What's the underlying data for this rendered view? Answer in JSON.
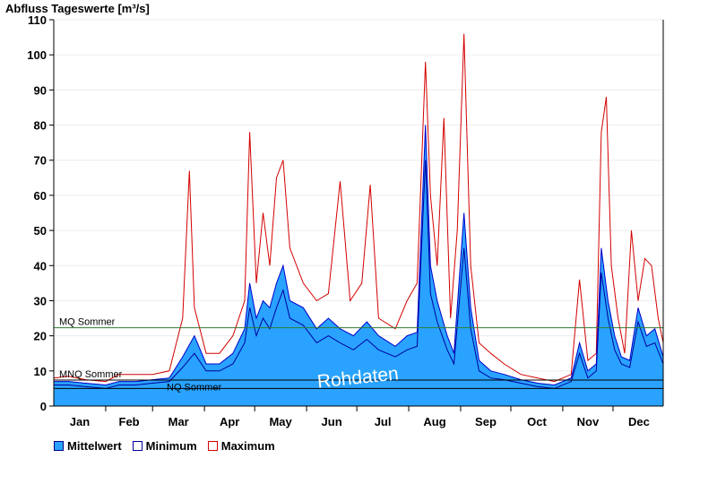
{
  "chart_data": {
    "type": "area",
    "ylabel": "Abfluss Tageswerte [m³/s]",
    "ylim": [
      0,
      110
    ],
    "yticks": [
      0,
      10,
      20,
      30,
      40,
      50,
      60,
      70,
      80,
      90,
      100,
      110
    ],
    "categories": [
      "Jan",
      "Feb",
      "Mar",
      "Apr",
      "May",
      "Jun",
      "Jul",
      "Aug",
      "Sep",
      "Oct",
      "Nov",
      "Dec"
    ],
    "x_unit": "day of year",
    "xlim": [
      1,
      365
    ],
    "watermark": "Rohdaten",
    "reference_lines": [
      {
        "label": "MQ Sommer",
        "value": 22.3,
        "color": "#2e7d32"
      },
      {
        "label": "MNQ Sommer",
        "value": 7.4,
        "color": "#000000"
      },
      {
        "label": "NQ Sommer",
        "value": 5.0,
        "color": "#000000"
      }
    ],
    "series": [
      {
        "name": "Mittelwert",
        "color": "#29a3ff",
        "style": "area",
        "points": [
          [
            1,
            7
          ],
          [
            10,
            7
          ],
          [
            20,
            6.5
          ],
          [
            32,
            6
          ],
          [
            40,
            7
          ],
          [
            50,
            7
          ],
          [
            60,
            7.5
          ],
          [
            70,
            8
          ],
          [
            78,
            14
          ],
          [
            85,
            20
          ],
          [
            92,
            12
          ],
          [
            100,
            12
          ],
          [
            108,
            15
          ],
          [
            115,
            22
          ],
          [
            118,
            35
          ],
          [
            122,
            25
          ],
          [
            126,
            30
          ],
          [
            130,
            28
          ],
          [
            134,
            35
          ],
          [
            138,
            40
          ],
          [
            142,
            30
          ],
          [
            150,
            28
          ],
          [
            158,
            22
          ],
          [
            165,
            25
          ],
          [
            172,
            22
          ],
          [
            180,
            20
          ],
          [
            188,
            24
          ],
          [
            195,
            20
          ],
          [
            205,
            17
          ],
          [
            212,
            20
          ],
          [
            218,
            21
          ],
          [
            223,
            80
          ],
          [
            226,
            40
          ],
          [
            230,
            30
          ],
          [
            236,
            20
          ],
          [
            240,
            15
          ],
          [
            246,
            55
          ],
          [
            250,
            28
          ],
          [
            255,
            13
          ],
          [
            262,
            10
          ],
          [
            270,
            9
          ],
          [
            280,
            7.5
          ],
          [
            290,
            6.5
          ],
          [
            300,
            6
          ],
          [
            310,
            8
          ],
          [
            315,
            18
          ],
          [
            320,
            10
          ],
          [
            325,
            12
          ],
          [
            328,
            45
          ],
          [
            332,
            30
          ],
          [
            336,
            20
          ],
          [
            340,
            14
          ],
          [
            345,
            13
          ],
          [
            350,
            28
          ],
          [
            355,
            20
          ],
          [
            360,
            22
          ],
          [
            365,
            14
          ]
        ]
      },
      {
        "name": "Minimum",
        "color": "#00009e",
        "style": "line",
        "points": [
          [
            1,
            6
          ],
          [
            10,
            6
          ],
          [
            20,
            5.5
          ],
          [
            32,
            5
          ],
          [
            40,
            6
          ],
          [
            50,
            6
          ],
          [
            60,
            6.5
          ],
          [
            70,
            7
          ],
          [
            78,
            11
          ],
          [
            85,
            15
          ],
          [
            92,
            10
          ],
          [
            100,
            10
          ],
          [
            108,
            12
          ],
          [
            115,
            18
          ],
          [
            118,
            28
          ],
          [
            122,
            20
          ],
          [
            126,
            25
          ],
          [
            130,
            22
          ],
          [
            134,
            28
          ],
          [
            138,
            33
          ],
          [
            142,
            25
          ],
          [
            150,
            23
          ],
          [
            158,
            18
          ],
          [
            165,
            20
          ],
          [
            172,
            18
          ],
          [
            180,
            16
          ],
          [
            188,
            19
          ],
          [
            195,
            16
          ],
          [
            205,
            14
          ],
          [
            212,
            16
          ],
          [
            218,
            17
          ],
          [
            223,
            70
          ],
          [
            226,
            32
          ],
          [
            230,
            24
          ],
          [
            236,
            16
          ],
          [
            240,
            12
          ],
          [
            246,
            45
          ],
          [
            250,
            22
          ],
          [
            255,
            10
          ],
          [
            262,
            8
          ],
          [
            270,
            7.5
          ],
          [
            280,
            6.5
          ],
          [
            290,
            5.5
          ],
          [
            300,
            5
          ],
          [
            310,
            7
          ],
          [
            315,
            15
          ],
          [
            320,
            8
          ],
          [
            325,
            10
          ],
          [
            328,
            38
          ],
          [
            332,
            25
          ],
          [
            336,
            16
          ],
          [
            340,
            12
          ],
          [
            345,
            11
          ],
          [
            350,
            24
          ],
          [
            355,
            17
          ],
          [
            360,
            18
          ],
          [
            365,
            12
          ]
        ]
      },
      {
        "name": "Maximum",
        "color": "#d40000",
        "style": "line",
        "points": [
          [
            1,
            8
          ],
          [
            10,
            8.5
          ],
          [
            20,
            7.5
          ],
          [
            32,
            7
          ],
          [
            40,
            9
          ],
          [
            50,
            9
          ],
          [
            60,
            9
          ],
          [
            70,
            10
          ],
          [
            78,
            25
          ],
          [
            82,
            67
          ],
          [
            85,
            28
          ],
          [
            92,
            15
          ],
          [
            100,
            15
          ],
          [
            108,
            20
          ],
          [
            115,
            30
          ],
          [
            118,
            78
          ],
          [
            122,
            35
          ],
          [
            126,
            55
          ],
          [
            130,
            40
          ],
          [
            134,
            65
          ],
          [
            138,
            70
          ],
          [
            142,
            45
          ],
          [
            150,
            35
          ],
          [
            158,
            30
          ],
          [
            165,
            32
          ],
          [
            172,
            64
          ],
          [
            178,
            30
          ],
          [
            185,
            35
          ],
          [
            190,
            63
          ],
          [
            195,
            25
          ],
          [
            205,
            22
          ],
          [
            212,
            30
          ],
          [
            218,
            35
          ],
          [
            223,
            98
          ],
          [
            226,
            60
          ],
          [
            230,
            40
          ],
          [
            234,
            82
          ],
          [
            238,
            25
          ],
          [
            242,
            50
          ],
          [
            246,
            106
          ],
          [
            250,
            40
          ],
          [
            255,
            18
          ],
          [
            262,
            15
          ],
          [
            270,
            12
          ],
          [
            280,
            9
          ],
          [
            290,
            8
          ],
          [
            300,
            7
          ],
          [
            310,
            9
          ],
          [
            315,
            36
          ],
          [
            320,
            13
          ],
          [
            325,
            15
          ],
          [
            328,
            78
          ],
          [
            331,
            88
          ],
          [
            334,
            40
          ],
          [
            338,
            25
          ],
          [
            342,
            15
          ],
          [
            346,
            50
          ],
          [
            350,
            30
          ],
          [
            354,
            42
          ],
          [
            358,
            40
          ],
          [
            362,
            25
          ],
          [
            365,
            18
          ]
        ]
      }
    ]
  }
}
